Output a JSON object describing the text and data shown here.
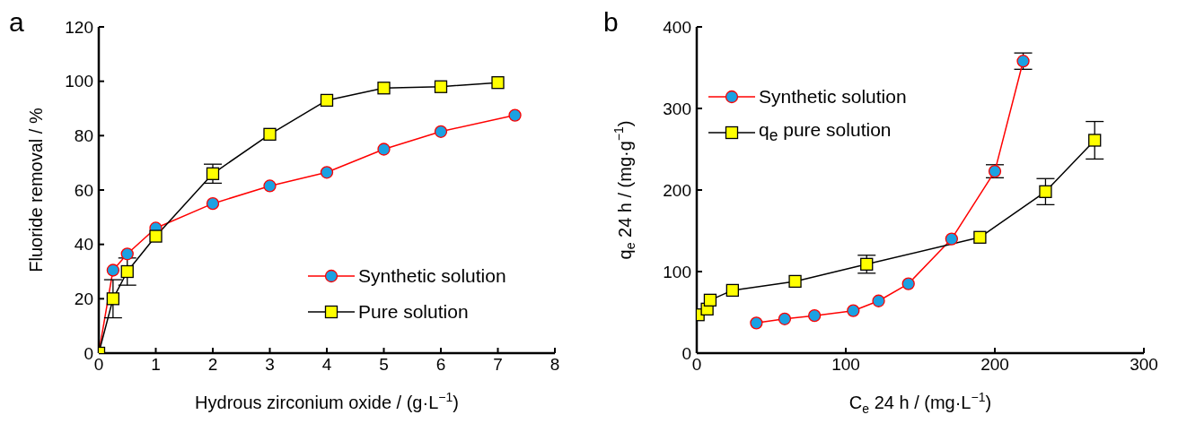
{
  "chart_data": [
    {
      "type": "line",
      "title": "a",
      "xlabel": "Hydrous zirconium oxide / (g·L$^{−1}$)",
      "ylabel": "Fluoride removal / %",
      "xlim": [
        0,
        8
      ],
      "xticks": [
        0,
        1,
        2,
        3,
        4,
        5,
        6,
        7,
        8
      ],
      "ylim": [
        0,
        120
      ],
      "yticks": [
        0,
        20,
        40,
        60,
        80,
        100,
        120
      ],
      "grid": false,
      "legend": "bottom right",
      "series": [
        {
          "name": "Synthetic solution",
          "color": "#ff0000",
          "marker": "circle",
          "x": [
            0,
            0.25,
            0.5,
            1,
            2,
            3,
            4,
            5,
            6,
            7.3
          ],
          "values": [
            0,
            30.5,
            36.5,
            46,
            55,
            61.5,
            66.5,
            75,
            81.5,
            87.5
          ]
        },
        {
          "name": "Pure solution",
          "color": "#000000",
          "marker": "square",
          "x": [
            0,
            0.25,
            0.5,
            1,
            2,
            3,
            4,
            5,
            6,
            7
          ],
          "values": [
            0,
            20,
            30,
            43,
            66,
            80.5,
            93,
            97.5,
            98,
            99.5
          ],
          "errors": [
            null,
            7,
            5,
            null,
            3.5,
            null,
            null,
            null,
            null,
            null
          ]
        }
      ]
    },
    {
      "type": "line",
      "title": "b",
      "xlabel": "C$_{e}$ 24 h / (mg·L$^{−1}$)",
      "ylabel": "q$_{e}$ 24 h / (mg·g$^{−1}$)",
      "xlim": [
        0,
        300
      ],
      "xticks": [
        0,
        100,
        200,
        300
      ],
      "ylim": [
        0,
        400
      ],
      "yticks": [
        0,
        100,
        200,
        300,
        400
      ],
      "grid": false,
      "legend": "top left",
      "series": [
        {
          "name": "Synthetic solution",
          "color": "#ff0000",
          "marker": "circle",
          "x": [
            40,
            59,
            79,
            105,
            122,
            142,
            171,
            200,
            219
          ],
          "values": [
            37,
            42,
            46,
            52,
            64,
            85,
            140,
            223,
            358
          ],
          "errors": [
            null,
            null,
            null,
            null,
            null,
            null,
            null,
            8,
            10
          ]
        },
        {
          "name": "q$_{e}$ pure solution",
          "color": "#000000",
          "marker": "square",
          "x": [
            1,
            7,
            9,
            24,
            66,
            114,
            190,
            234,
            267
          ],
          "values": [
            47,
            54,
            65,
            77,
            88,
            109,
            142,
            198,
            261
          ],
          "errors": [
            null,
            null,
            null,
            null,
            null,
            11,
            null,
            16,
            23
          ]
        }
      ]
    }
  ]
}
